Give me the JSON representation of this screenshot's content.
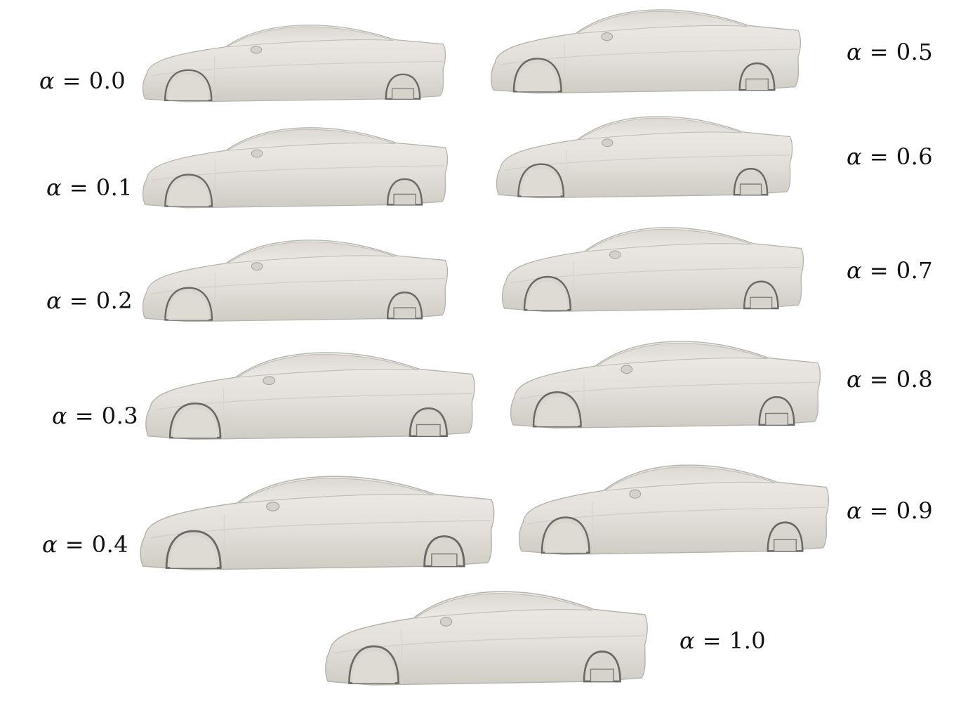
{
  "figure": {
    "panels": [
      {
        "alpha_symbol": "α",
        "equals": "=",
        "value": "0.0"
      },
      {
        "alpha_symbol": "α",
        "equals": "=",
        "value": "0.1"
      },
      {
        "alpha_symbol": "α",
        "equals": "=",
        "value": "0.2"
      },
      {
        "alpha_symbol": "α",
        "equals": "=",
        "value": "0.3"
      },
      {
        "alpha_symbol": "α",
        "equals": "=",
        "value": "0.4"
      },
      {
        "alpha_symbol": "α",
        "equals": "=",
        "value": "0.5"
      },
      {
        "alpha_symbol": "α",
        "equals": "=",
        "value": "0.6"
      },
      {
        "alpha_symbol": "α",
        "equals": "=",
        "value": "0.7"
      },
      {
        "alpha_symbol": "α",
        "equals": "=",
        "value": "0.8"
      },
      {
        "alpha_symbol": "α",
        "equals": "=",
        "value": "0.9"
      },
      {
        "alpha_symbol": "α",
        "equals": "=",
        "value": "1.0"
      }
    ],
    "colors": {
      "body": "#e4e1dc",
      "body_light": "#ecebe7",
      "shade": "#c9c6c0",
      "edge": "#a9a6a0",
      "dark": "#5e5c58"
    }
  }
}
